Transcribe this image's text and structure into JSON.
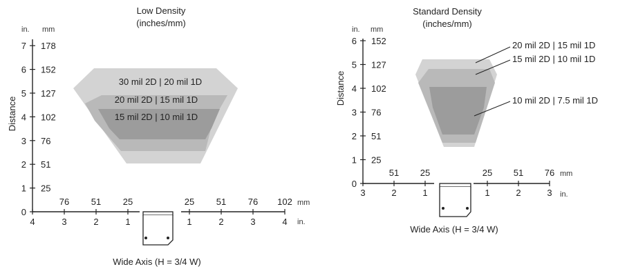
{
  "charts": [
    {
      "title_line1": "Low Density",
      "title_line2": "(inches/mm)",
      "y_axis_label": "Distance",
      "y_unit_in": "in.",
      "y_unit_mm": "mm",
      "y_ticks": [
        {
          "in": "0",
          "mm": ""
        },
        {
          "in": "1",
          "mm": "25"
        },
        {
          "in": "2",
          "mm": "51"
        },
        {
          "in": "3",
          "mm": "76"
        },
        {
          "in": "4",
          "mm": "102"
        },
        {
          "in": "5",
          "mm": "127"
        },
        {
          "in": "6",
          "mm": "152"
        },
        {
          "in": "7",
          "mm": "178"
        }
      ],
      "x_unit_in": "in.",
      "x_unit_mm": "mm",
      "x_ticks_left": [
        {
          "in": "4",
          "mm": ""
        },
        {
          "in": "3",
          "mm": "76"
        },
        {
          "in": "2",
          "mm": "51"
        },
        {
          "in": "1",
          "mm": "25"
        }
      ],
      "x_ticks_right": [
        {
          "in": "1",
          "mm": "25"
        },
        {
          "in": "2",
          "mm": "51"
        },
        {
          "in": "3",
          "mm": "76"
        },
        {
          "in": "4",
          "mm": "102"
        }
      ],
      "x_axis_label": "Wide Axis (H = 3/4 W)",
      "zones": [
        {
          "label": "30 mil 2D | 20 mil 1D",
          "color": "#d3d3d3"
        },
        {
          "label": "20 mil 2D | 15 mil 1D",
          "color": "#b9b9b9"
        },
        {
          "label": "15 mil 2D | 10 mil 1D",
          "color": "#9c9c9c"
        }
      ]
    },
    {
      "title_line1": "Standard Density",
      "title_line2": "(inches/mm)",
      "y_axis_label": "Distance",
      "y_unit_in": "in.",
      "y_unit_mm": "mm",
      "y_ticks": [
        {
          "in": "0",
          "mm": ""
        },
        {
          "in": "1",
          "mm": "25"
        },
        {
          "in": "2",
          "mm": "51"
        },
        {
          "in": "3",
          "mm": "76"
        },
        {
          "in": "4",
          "mm": "102"
        },
        {
          "in": "5",
          "mm": "127"
        },
        {
          "in": "6",
          "mm": "152"
        }
      ],
      "x_unit_in": "in.",
      "x_unit_mm": "mm",
      "x_ticks_left": [
        {
          "in": "3",
          "mm": ""
        },
        {
          "in": "2",
          "mm": "51"
        },
        {
          "in": "1",
          "mm": "25"
        }
      ],
      "x_ticks_right": [
        {
          "in": "1",
          "mm": "25"
        },
        {
          "in": "2",
          "mm": "51"
        },
        {
          "in": "3",
          "mm": "76"
        }
      ],
      "x_axis_label": "Wide Axis (H = 3/4 W)",
      "zones": [
        {
          "label": "20 mil 2D | 15 mil 1D",
          "color": "#d3d3d3"
        },
        {
          "label": "15 mil 2D | 10 mil 1D",
          "color": "#b9b9b9"
        },
        {
          "label": "10 mil 2D | 7.5 mil 1D",
          "color": "#9c9c9c"
        }
      ]
    }
  ]
}
